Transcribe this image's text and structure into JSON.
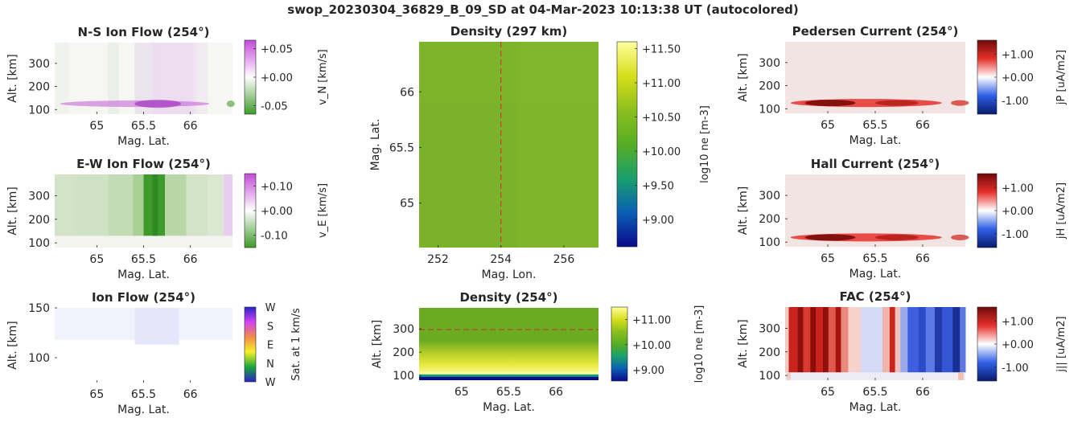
{
  "figure_title": "swop_20230304_36829_B_09_SD at 04-Mar-2023 10:13:38 UT (autocolored)",
  "chart_data": [
    {
      "id": "ns",
      "type": "heatmap",
      "title": "N-S Ion Flow (254°)",
      "xlabel": "Mag. Lat.",
      "ylabel": "Alt. [km]",
      "xlim": [
        64.55,
        66.45
      ],
      "ylim": [
        80,
        390
      ],
      "xticks": [
        {
          "v": 65,
          "t": "65"
        },
        {
          "v": 65.5,
          "t": "65.5"
        },
        {
          "v": 66,
          "t": "66"
        }
      ],
      "yticks": [
        {
          "v": 100,
          "t": "100"
        },
        {
          "v": 200,
          "t": "200"
        },
        {
          "v": 300,
          "t": "300"
        }
      ],
      "colormap": "green-white-purple",
      "colorbar": {
        "label": "v_N [km/s]",
        "range": [
          -0.065,
          0.065
        ],
        "ticks": [
          {
            "v": 0.05,
            "t": "+0.05"
          },
          {
            "v": 0.0,
            "t": "+0.00"
          },
          {
            "v": -0.05,
            "t": "-0.05"
          }
        ],
        "colors": [
          "#3e9a2a",
          "#ffffff",
          "#c44bd8"
        ]
      }
    },
    {
      "id": "ew",
      "type": "heatmap",
      "title": "E-W Ion Flow (254°)",
      "xlabel": "Mag. Lat.",
      "ylabel": "Alt. [km]",
      "xlim": [
        64.55,
        66.45
      ],
      "ylim": [
        80,
        390
      ],
      "xticks": [
        {
          "v": 65,
          "t": "65"
        },
        {
          "v": 65.5,
          "t": "65.5"
        },
        {
          "v": 66,
          "t": "66"
        }
      ],
      "yticks": [
        {
          "v": 100,
          "t": "100"
        },
        {
          "v": 200,
          "t": "200"
        },
        {
          "v": 300,
          "t": "300"
        }
      ],
      "colormap": "green-white-purple",
      "colorbar": {
        "label": "v_E [km/s]",
        "range": [
          -0.15,
          0.15
        ],
        "ticks": [
          {
            "v": 0.1,
            "t": "+0.10"
          },
          {
            "v": 0.0,
            "t": "+0.00"
          },
          {
            "v": -0.1,
            "t": "-0.10"
          }
        ],
        "colors": [
          "#3e9a2a",
          "#ffffff",
          "#c44bd8"
        ]
      }
    },
    {
      "id": "ion",
      "type": "heatmap",
      "title": "Ion Flow (254°)",
      "xlabel": "Mag. Lat.",
      "ylabel": "Alt. [km]",
      "xlim": [
        64.55,
        66.45
      ],
      "ylim": [
        75,
        150
      ],
      "xticks": [
        {
          "v": 65,
          "t": "65"
        },
        {
          "v": 65.5,
          "t": "65.5"
        },
        {
          "v": 66,
          "t": "66"
        }
      ],
      "yticks": [
        {
          "v": 100,
          "t": "100"
        },
        {
          "v": 150,
          "t": "150"
        }
      ],
      "colorbar": {
        "label": "Sat. at 1 km/s",
        "ticklabels": [
          "W",
          "N",
          "E",
          "S",
          "W"
        ],
        "colors": [
          "#2a23c8",
          "#1aa838",
          "#f7f02a",
          "#f28a4a",
          "#d342f5",
          "#2a23c8"
        ]
      }
    },
    {
      "id": "dens_top",
      "type": "heatmap",
      "title": "Density (297 km)",
      "xlabel": "Mag. Lon.",
      "ylabel": "Mag. Lat.",
      "xlim": [
        251.4,
        257.1
      ],
      "ylim": [
        64.6,
        66.45
      ],
      "xticks": [
        {
          "v": 252,
          "t": "252"
        },
        {
          "v": 254,
          "t": "254"
        },
        {
          "v": 256,
          "t": "256"
        }
      ],
      "yticks": [
        {
          "v": 65,
          "t": "65"
        },
        {
          "v": 65.5,
          "t": "65.5"
        },
        {
          "v": 66,
          "t": "66"
        }
      ],
      "dashed_line": {
        "axis": "x",
        "value": 254,
        "color": "#d62728"
      },
      "colorbar": {
        "label": "log10 ne [m-3]",
        "range": [
          8.6,
          11.6
        ],
        "ticks": [
          {
            "v": 11.5,
            "t": "+11.50"
          },
          {
            "v": 11.0,
            "t": "+11.00"
          },
          {
            "v": 10.5,
            "t": "+10.50"
          },
          {
            "v": 10.0,
            "t": "+10.00"
          },
          {
            "v": 9.5,
            "t": "+9.50"
          },
          {
            "v": 9.0,
            "t": "+9.00"
          }
        ],
        "colors": [
          "#0a0a8c",
          "#0a5fb4",
          "#1aa06e",
          "#57ad24",
          "#8cbf1e",
          "#d6de1a",
          "#ffff9e"
        ]
      }
    },
    {
      "id": "dens_bot",
      "type": "heatmap",
      "title": "Density (254°)",
      "xlabel": "Mag. Lat.",
      "ylabel": "Alt. [km]",
      "xlim": [
        64.55,
        66.45
      ],
      "ylim": [
        80,
        390
      ],
      "xticks": [
        {
          "v": 65,
          "t": "65"
        },
        {
          "v": 65.5,
          "t": "65.5"
        },
        {
          "v": 66,
          "t": "66"
        }
      ],
      "yticks": [
        {
          "v": 100,
          "t": "100"
        },
        {
          "v": 200,
          "t": "200"
        },
        {
          "v": 300,
          "t": "300"
        }
      ],
      "dashed_line": {
        "axis": "y",
        "value": 297,
        "color": "#d62728"
      },
      "colorbar": {
        "label": "log10 ne [m-3]",
        "range": [
          8.55,
          11.5
        ],
        "ticks": [
          {
            "v": 11.0,
            "t": "+11.00"
          },
          {
            "v": 10.0,
            "t": "+10.00"
          },
          {
            "v": 9.0,
            "t": "+9.00"
          }
        ],
        "colors": [
          "#0a0a8c",
          "#0a5fb4",
          "#1aa06e",
          "#57ad24",
          "#8cbf1e",
          "#d6de1a",
          "#ffff9e"
        ]
      }
    },
    {
      "id": "ped",
      "type": "heatmap",
      "title": "Pedersen Current (254°)",
      "xlabel": "Mag. Lat.",
      "ylabel": "Alt. [km]",
      "xlim": [
        64.55,
        66.45
      ],
      "ylim": [
        80,
        390
      ],
      "xticks": [
        {
          "v": 65,
          "t": "65"
        },
        {
          "v": 65.5,
          "t": "65.5"
        },
        {
          "v": 66,
          "t": "66"
        }
      ],
      "yticks": [
        {
          "v": 100,
          "t": "100"
        },
        {
          "v": 200,
          "t": "200"
        },
        {
          "v": 300,
          "t": "300"
        }
      ],
      "colormap": "blue-white-red",
      "colorbar": {
        "label": "jP [uA/m2]",
        "range": [
          -1.6,
          1.6
        ],
        "ticks": [
          {
            "v": 1.0,
            "t": "+1.00"
          },
          {
            "v": 0.0,
            "t": "+0.00"
          },
          {
            "v": -1.0,
            "t": "-1.00"
          }
        ],
        "colors": [
          "#0a1a6e",
          "#2f5fe6",
          "#ffffff",
          "#e6302a",
          "#6e0a0a"
        ]
      }
    },
    {
      "id": "hall",
      "type": "heatmap",
      "title": "Hall Current (254°)",
      "xlabel": "Mag. Lat.",
      "ylabel": "Alt. [km]",
      "xlim": [
        64.55,
        66.45
      ],
      "ylim": [
        80,
        390
      ],
      "xticks": [
        {
          "v": 65,
          "t": "65"
        },
        {
          "v": 65.5,
          "t": "65.5"
        },
        {
          "v": 66,
          "t": "66"
        }
      ],
      "yticks": [
        {
          "v": 100,
          "t": "100"
        },
        {
          "v": 200,
          "t": "200"
        },
        {
          "v": 300,
          "t": "300"
        }
      ],
      "colormap": "blue-white-red",
      "colorbar": {
        "label": "jH [uA/m2]",
        "range": [
          -1.6,
          1.6
        ],
        "ticks": [
          {
            "v": 1.0,
            "t": "+1.00"
          },
          {
            "v": 0.0,
            "t": "+0.00"
          },
          {
            "v": -1.0,
            "t": "-1.00"
          }
        ],
        "colors": [
          "#0a1a6e",
          "#2f5fe6",
          "#ffffff",
          "#e6302a",
          "#6e0a0a"
        ]
      }
    },
    {
      "id": "fac",
      "type": "heatmap",
      "title": "FAC (254°)",
      "xlabel": "Mag. Lat.",
      "ylabel": "Alt. [km]",
      "xlim": [
        64.55,
        66.45
      ],
      "ylim": [
        80,
        390
      ],
      "xticks": [
        {
          "v": 65,
          "t": "65"
        },
        {
          "v": 65.5,
          "t": "65.5"
        },
        {
          "v": 66,
          "t": "66"
        }
      ],
      "yticks": [
        {
          "v": 100,
          "t": "100"
        },
        {
          "v": 200,
          "t": "200"
        },
        {
          "v": 300,
          "t": "300"
        }
      ],
      "colormap": "blue-white-red",
      "colorbar": {
        "label": "j|| [uA/m2]",
        "range": [
          -1.6,
          1.6
        ],
        "ticks": [
          {
            "v": 1.0,
            "t": "+1.00"
          },
          {
            "v": 0.0,
            "t": "+0.00"
          },
          {
            "v": -1.0,
            "t": "-1.00"
          }
        ],
        "colors": [
          "#0a1a6e",
          "#2f5fe6",
          "#ffffff",
          "#e6302a",
          "#6e0a0a"
        ]
      }
    }
  ]
}
